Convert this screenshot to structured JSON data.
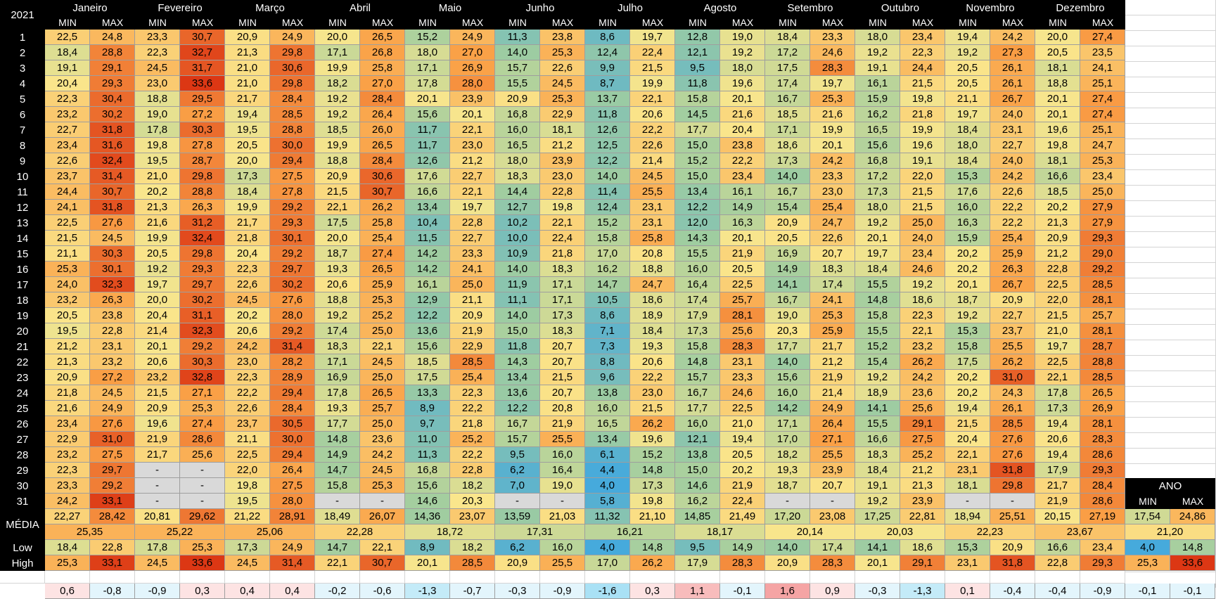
{
  "year": "2021",
  "months": [
    "Janeiro",
    "Fevereiro",
    "Março",
    "Abril",
    "Maio",
    "Junho",
    "Julho",
    "Agosto",
    "Setembro",
    "Outubro",
    "Novembro",
    "Dezembro"
  ],
  "sub_min": "MIN",
  "sub_max": "MAX",
  "days": [
    "1",
    "2",
    "3",
    "4",
    "5",
    "6",
    "7",
    "8",
    "9",
    "10",
    "11",
    "12",
    "13",
    "14",
    "15",
    "16",
    "17",
    "18",
    "19",
    "20",
    "21",
    "22",
    "23",
    "24",
    "25",
    "26",
    "27",
    "28",
    "29",
    "30",
    "31"
  ],
  "values": [
    [
      "22,5",
      "24,8",
      "23,3",
      "30,7",
      "20,9",
      "24,9",
      "20,0",
      "26,5",
      "15,2",
      "24,9",
      "11,3",
      "23,8",
      "8,6",
      "19,7",
      "12,8",
      "19,0",
      "18,4",
      "23,3",
      "18,0",
      "23,4",
      "19,4",
      "24,2",
      "20,0",
      "27,4"
    ],
    [
      "18,4",
      "28,8",
      "22,3",
      "32,7",
      "21,3",
      "29,8",
      "17,1",
      "26,8",
      "18,0",
      "27,0",
      "14,0",
      "25,3",
      "12,4",
      "22,4",
      "12,1",
      "19,2",
      "17,2",
      "24,6",
      "19,2",
      "22,3",
      "19,2",
      "27,3",
      "20,5",
      "23,5"
    ],
    [
      "19,1",
      "29,1",
      "24,5",
      "31,7",
      "21,0",
      "30,6",
      "19,9",
      "25,8",
      "17,1",
      "26,9",
      "15,7",
      "22,6",
      "9,9",
      "21,5",
      "9,5",
      "18,0",
      "17,5",
      "28,3",
      "19,1",
      "24,4",
      "20,5",
      "26,1",
      "18,1",
      "24,1"
    ],
    [
      "20,4",
      "29,3",
      "23,0",
      "33,6",
      "21,0",
      "29,8",
      "18,2",
      "27,0",
      "17,8",
      "28,0",
      "15,5",
      "24,5",
      "8,7",
      "19,9",
      "11,8",
      "19,6",
      "17,4",
      "19,7",
      "16,1",
      "21,5",
      "20,5",
      "26,1",
      "18,8",
      "25,1"
    ],
    [
      "22,3",
      "30,4",
      "18,8",
      "29,5",
      "21,7",
      "28,4",
      "19,2",
      "28,4",
      "20,1",
      "23,9",
      "20,9",
      "25,3",
      "13,7",
      "22,1",
      "15,8",
      "20,1",
      "16,7",
      "25,3",
      "15,9",
      "19,8",
      "21,1",
      "26,7",
      "20,1",
      "27,4"
    ],
    [
      "23,2",
      "30,2",
      "19,0",
      "27,2",
      "19,4",
      "28,5",
      "19,2",
      "26,4",
      "15,6",
      "20,1",
      "16,8",
      "22,9",
      "11,8",
      "20,6",
      "14,5",
      "21,6",
      "18,5",
      "21,6",
      "16,2",
      "21,8",
      "19,7",
      "24,0",
      "20,1",
      "27,4"
    ],
    [
      "22,7",
      "31,8",
      "17,8",
      "30,3",
      "19,5",
      "28,8",
      "18,5",
      "26,0",
      "11,7",
      "22,1",
      "16,0",
      "18,1",
      "12,6",
      "22,2",
      "17,7",
      "20,4",
      "17,1",
      "19,9",
      "16,5",
      "19,9",
      "18,4",
      "23,1",
      "19,6",
      "25,1"
    ],
    [
      "23,4",
      "31,6",
      "19,8",
      "27,8",
      "20,5",
      "30,0",
      "19,9",
      "26,5",
      "11,7",
      "23,0",
      "16,5",
      "21,2",
      "12,5",
      "22,6",
      "15,0",
      "23,8",
      "18,6",
      "20,1",
      "15,6",
      "19,6",
      "18,0",
      "22,7",
      "19,8",
      "24,7"
    ],
    [
      "22,6",
      "32,4",
      "19,5",
      "28,7",
      "20,0",
      "29,4",
      "18,8",
      "28,4",
      "12,6",
      "21,2",
      "18,0",
      "23,9",
      "12,2",
      "21,4",
      "15,2",
      "22,2",
      "17,3",
      "24,2",
      "16,8",
      "19,1",
      "18,4",
      "24,0",
      "18,1",
      "25,3"
    ],
    [
      "23,7",
      "31,4",
      "21,0",
      "29,8",
      "17,3",
      "27,5",
      "20,9",
      "30,6",
      "17,6",
      "22,7",
      "18,3",
      "23,0",
      "14,0",
      "24,5",
      "15,0",
      "23,4",
      "14,0",
      "23,3",
      "17,2",
      "22,0",
      "15,3",
      "24,2",
      "16,6",
      "23,4"
    ],
    [
      "24,4",
      "30,7",
      "20,2",
      "28,8",
      "18,4",
      "27,8",
      "21,5",
      "30,7",
      "16,6",
      "22,1",
      "14,4",
      "22,8",
      "11,4",
      "25,5",
      "13,4",
      "16,1",
      "16,7",
      "23,0",
      "17,3",
      "21,5",
      "17,6",
      "22,6",
      "18,5",
      "25,0"
    ],
    [
      "24,1",
      "31,8",
      "21,3",
      "26,3",
      "19,9",
      "29,2",
      "22,1",
      "26,2",
      "13,4",
      "19,7",
      "12,7",
      "19,8",
      "12,4",
      "23,1",
      "12,2",
      "14,9",
      "15,4",
      "25,4",
      "18,0",
      "21,5",
      "16,0",
      "22,2",
      "20,2",
      "27,9"
    ],
    [
      "22,5",
      "27,6",
      "21,6",
      "31,2",
      "21,7",
      "29,3",
      "17,5",
      "25,8",
      "10,4",
      "22,8",
      "10,2",
      "22,1",
      "15,2",
      "23,1",
      "12,0",
      "16,3",
      "20,9",
      "24,7",
      "19,2",
      "25,0",
      "16,3",
      "22,2",
      "21,3",
      "27,9"
    ],
    [
      "21,5",
      "24,5",
      "19,9",
      "32,4",
      "21,8",
      "30,1",
      "20,0",
      "25,4",
      "11,5",
      "22,7",
      "10,0",
      "22,4",
      "15,8",
      "25,8",
      "14,3",
      "20,1",
      "20,5",
      "22,6",
      "20,1",
      "24,0",
      "15,9",
      "25,4",
      "20,9",
      "29,3"
    ],
    [
      "21,1",
      "30,3",
      "20,5",
      "29,8",
      "20,4",
      "29,2",
      "18,7",
      "27,4",
      "14,2",
      "23,3",
      "10,9",
      "21,8",
      "17,0",
      "20,8",
      "15,5",
      "21,9",
      "16,9",
      "20,7",
      "19,7",
      "23,4",
      "20,2",
      "25,9",
      "21,2",
      "29,0"
    ],
    [
      "25,3",
      "30,1",
      "19,2",
      "29,3",
      "22,3",
      "29,7",
      "19,3",
      "26,5",
      "14,2",
      "24,1",
      "14,0",
      "18,3",
      "16,2",
      "18,8",
      "16,0",
      "20,5",
      "14,9",
      "18,3",
      "18,4",
      "24,6",
      "20,2",
      "26,3",
      "22,8",
      "29,2"
    ],
    [
      "24,0",
      "32,3",
      "19,7",
      "29,7",
      "22,6",
      "30,2",
      "20,6",
      "25,9",
      "16,1",
      "25,0",
      "11,9",
      "17,1",
      "14,7",
      "24,7",
      "16,4",
      "22,5",
      "14,1",
      "17,4",
      "15,5",
      "19,2",
      "20,1",
      "26,7",
      "22,5",
      "28,5"
    ],
    [
      "23,2",
      "26,3",
      "20,0",
      "30,2",
      "24,5",
      "27,6",
      "18,8",
      "25,3",
      "12,9",
      "21,1",
      "11,1",
      "17,1",
      "10,5",
      "18,6",
      "17,4",
      "25,7",
      "16,7",
      "24,1",
      "14,8",
      "18,6",
      "18,7",
      "20,9",
      "22,0",
      "28,1"
    ],
    [
      "20,5",
      "23,8",
      "20,4",
      "31,1",
      "20,2",
      "28,0",
      "19,2",
      "25,2",
      "12,2",
      "20,9",
      "14,0",
      "17,3",
      "8,6",
      "18,9",
      "17,9",
      "28,1",
      "19,0",
      "25,3",
      "15,8",
      "22,3",
      "19,2",
      "22,7",
      "21,5",
      "25,7"
    ],
    [
      "19,5",
      "22,8",
      "21,4",
      "32,3",
      "20,6",
      "29,2",
      "17,4",
      "25,0",
      "13,6",
      "21,9",
      "15,0",
      "18,3",
      "7,1",
      "18,4",
      "17,3",
      "25,6",
      "20,3",
      "25,9",
      "15,5",
      "22,1",
      "15,3",
      "23,7",
      "21,0",
      "28,1"
    ],
    [
      "21,2",
      "23,1",
      "20,1",
      "29,2",
      "24,2",
      "31,4",
      "18,3",
      "22,1",
      "15,6",
      "22,9",
      "11,8",
      "20,7",
      "7,3",
      "19,3",
      "15,8",
      "28,3",
      "17,7",
      "21,7",
      "15,2",
      "23,2",
      "15,8",
      "25,5",
      "19,7",
      "28,7"
    ],
    [
      "21,3",
      "23,2",
      "20,6",
      "30,3",
      "23,0",
      "28,2",
      "17,1",
      "24,5",
      "18,5",
      "28,5",
      "14,3",
      "20,7",
      "8,8",
      "20,6",
      "14,8",
      "23,1",
      "14,0",
      "21,2",
      "15,4",
      "26,2",
      "17,5",
      "26,2",
      "22,5",
      "28,8"
    ],
    [
      "20,9",
      "27,2",
      "23,2",
      "32,8",
      "22,3",
      "28,9",
      "16,9",
      "25,0",
      "17,5",
      "25,4",
      "13,4",
      "21,5",
      "9,6",
      "22,2",
      "15,7",
      "23,3",
      "15,6",
      "21,9",
      "19,2",
      "24,2",
      "20,2",
      "31,0",
      "22,1",
      "28,5"
    ],
    [
      "21,8",
      "24,5",
      "21,5",
      "27,1",
      "22,2",
      "29,4",
      "17,8",
      "26,5",
      "13,3",
      "22,3",
      "13,6",
      "20,7",
      "13,8",
      "23,0",
      "16,7",
      "24,6",
      "16,0",
      "21,4",
      "18,9",
      "23,6",
      "20,2",
      "24,3",
      "17,8",
      "26,5"
    ],
    [
      "21,6",
      "24,9",
      "20,9",
      "25,3",
      "22,6",
      "28,4",
      "19,3",
      "25,7",
      "8,9",
      "22,2",
      "12,2",
      "20,8",
      "16,0",
      "21,5",
      "17,7",
      "22,5",
      "14,2",
      "24,9",
      "14,1",
      "25,6",
      "19,4",
      "26,1",
      "17,3",
      "26,9"
    ],
    [
      "23,4",
      "27,6",
      "19,6",
      "27,4",
      "23,7",
      "30,5",
      "17,7",
      "25,0",
      "9,7",
      "21,8",
      "16,7",
      "21,9",
      "16,5",
      "26,2",
      "16,0",
      "21,0",
      "17,1",
      "26,4",
      "15,5",
      "29,1",
      "21,5",
      "28,5",
      "19,4",
      "28,1"
    ],
    [
      "22,9",
      "31,0",
      "21,9",
      "28,6",
      "21,1",
      "30,0",
      "14,8",
      "23,6",
      "11,0",
      "25,2",
      "15,7",
      "25,5",
      "13,4",
      "19,6",
      "12,1",
      "19,4",
      "17,0",
      "27,1",
      "16,6",
      "27,5",
      "20,4",
      "27,6",
      "20,6",
      "28,3"
    ],
    [
      "23,2",
      "27,5",
      "21,7",
      "25,6",
      "22,5",
      "29,4",
      "14,9",
      "24,2",
      "11,3",
      "22,2",
      "9,5",
      "16,0",
      "6,1",
      "15,2",
      "13,8",
      "20,5",
      "18,2",
      "25,5",
      "18,3",
      "25,2",
      "22,1",
      "27,6",
      "19,4",
      "28,6"
    ],
    [
      "22,3",
      "29,7",
      "-",
      "-",
      "22,0",
      "26,4",
      "14,7",
      "24,5",
      "16,8",
      "22,8",
      "6,2",
      "16,4",
      "4,4",
      "14,8",
      "15,0",
      "20,2",
      "19,3",
      "23,9",
      "18,4",
      "21,2",
      "23,1",
      "31,8",
      "17,9",
      "29,3"
    ],
    [
      "23,3",
      "29,2",
      "-",
      "-",
      "19,8",
      "27,5",
      "15,8",
      "25,3",
      "15,6",
      "18,2",
      "7,0",
      "19,0",
      "4,0",
      "17,3",
      "14,6",
      "21,9",
      "18,7",
      "20,7",
      "19,1",
      "21,3",
      "18,1",
      "29,8",
      "21,7",
      "28,4"
    ],
    [
      "24,2",
      "33,1",
      "-",
      "-",
      "19,5",
      "28,0",
      "-",
      "-",
      "14,6",
      "20,3",
      "-",
      "-",
      "5,8",
      "19,8",
      "16,2",
      "22,4",
      "-",
      "-",
      "19,2",
      "23,9",
      "-",
      "-",
      "21,9",
      "28,6"
    ]
  ],
  "media_label": "MÉDIA",
  "media": [
    "22,27",
    "28,42",
    "20,81",
    "29,62",
    "21,22",
    "28,91",
    "18,49",
    "26,07",
    "14,36",
    "23,07",
    "13,59",
    "21,03",
    "11,32",
    "21,10",
    "14,85",
    "21,49",
    "17,20",
    "23,08",
    "17,25",
    "22,81",
    "18,94",
    "25,51",
    "20,15",
    "27,19"
  ],
  "media_combined": [
    "25,35",
    "25,22",
    "25,06",
    "22,28",
    "18,72",
    "17,31",
    "16,21",
    "18,17",
    "20,14",
    "20,03",
    "22,23",
    "23,67"
  ],
  "low_label": "Low",
  "low": [
    "18,4",
    "22,8",
    "17,8",
    "25,3",
    "17,3",
    "24,9",
    "14,7",
    "22,1",
    "8,9",
    "18,2",
    "6,2",
    "16,0",
    "4,0",
    "14,8",
    "9,5",
    "14,9",
    "14,0",
    "17,4",
    "14,1",
    "18,6",
    "15,3",
    "20,9",
    "16,6",
    "23,4"
  ],
  "high_label": "High",
  "high": [
    "25,3",
    "33,1",
    "24,5",
    "33,6",
    "24,5",
    "31,4",
    "22,1",
    "30,7",
    "20,1",
    "28,5",
    "20,9",
    "25,5",
    "17,0",
    "26,2",
    "17,9",
    "28,3",
    "20,9",
    "28,3",
    "20,1",
    "29,1",
    "23,1",
    "31,8",
    "22,8",
    "29,3"
  ],
  "diff": [
    "0,6",
    "-0,8",
    "-0,9",
    "0,3",
    "0,4",
    "0,4",
    "-0,2",
    "-0,6",
    "-1,3",
    "-0,7",
    "-0,3",
    "-0,9",
    "-1,6",
    "0,3",
    "1,1",
    "-0,1",
    "1,6",
    "0,9",
    "-0,3",
    "-1,3",
    "0,1",
    "-0,4",
    "-0,4",
    "-0,9"
  ],
  "ano": {
    "title": "ANO",
    "min_label": "MIN",
    "max_label": "MAX",
    "media": [
      "17,54",
      "24,86"
    ],
    "media_combined": "21,20",
    "low": [
      "4,0",
      "14,8"
    ],
    "high": [
      "25,3",
      "33,6"
    ],
    "diff": [
      "-0,1",
      "-0,1"
    ]
  }
}
